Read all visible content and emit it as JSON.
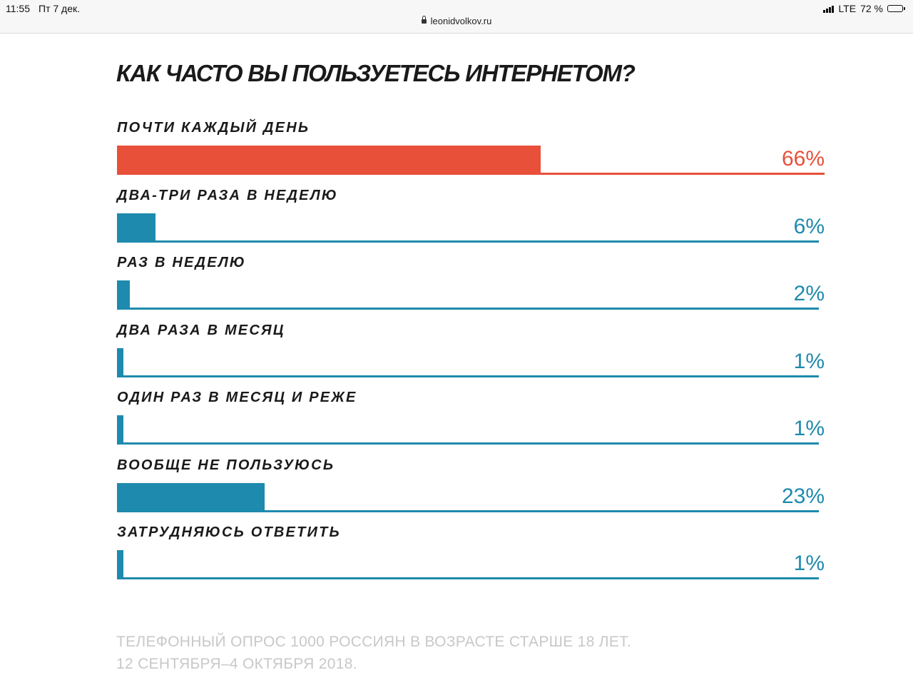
{
  "status_bar": {
    "time": "11:55",
    "date": "Пт 7 дек.",
    "network": "LTE",
    "battery": "72 %"
  },
  "browser": {
    "url": "leonidvolkov.ru"
  },
  "colors": {
    "highlight": "#e8503a",
    "primary": "#1e8aad",
    "text": "#1a1a1a",
    "footnote": "#c8c8c8"
  },
  "chart_data": {
    "type": "bar",
    "orientation": "horizontal",
    "title": "КАК ЧАСТО ВЫ ПОЛЬЗУЕТЕСЬ ИНТЕРНЕТОМ?",
    "categories": [
      "ПОЧТИ КАЖДЫЙ ДЕНЬ",
      "ДВА-ТРИ РАЗА В НЕДЕЛЮ",
      "РАЗ В НЕДЕЛЮ",
      "ДВА РАЗА В МЕСЯЦ",
      "ОДИН РАЗ В МЕСЯЦ И РЕЖЕ",
      "ВООБЩЕ НЕ ПОЛЬЗУЮСЬ",
      "ЗАТРУДНЯЮСЬ ОТВЕТИТЬ"
    ],
    "values": [
      66,
      6,
      2,
      1,
      1,
      23,
      1
    ],
    "value_labels": [
      "66%",
      "6%",
      "2%",
      "1%",
      "1%",
      "23%",
      "1%"
    ],
    "unit": "%",
    "xlim": [
      0,
      100
    ],
    "highlight_index": 0,
    "grid": false,
    "legend": "none"
  },
  "footnote": {
    "line1": "ТЕЛЕФОННЫЙ ОПРОС 1000 РОССИЯН В ВОЗРАСТЕ СТАРШЕ 18 ЛЕТ.",
    "line2": "12 СЕНТЯБРЯ–4 ОКТЯБРЯ 2018."
  }
}
